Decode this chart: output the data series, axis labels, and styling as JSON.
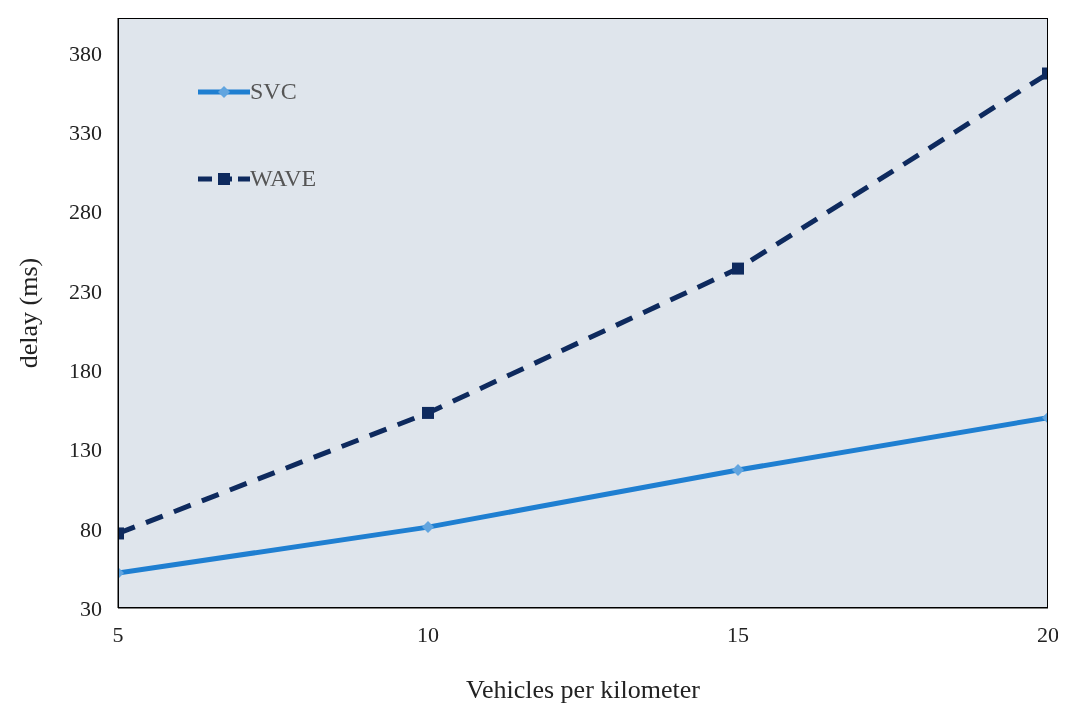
{
  "chart_data": {
    "type": "line",
    "xlabel": "Vehicles per kilometer",
    "ylabel": "delay (ms)",
    "x": [
      5,
      10,
      15,
      20
    ],
    "xlim": [
      5,
      20
    ],
    "xticks": [
      5,
      10,
      15,
      20
    ],
    "ylim": [
      30,
      402
    ],
    "yticks": [
      30,
      80,
      130,
      180,
      230,
      280,
      330,
      380
    ],
    "grid": false,
    "legend": "top left",
    "series": [
      {
        "name": "SVC",
        "color": "#1f7fd1",
        "values": [
          52,
          81,
          117,
          150
        ],
        "marker": "diamond",
        "line_style": "solid"
      },
      {
        "name": "WAVE",
        "color": "#0e2a5e",
        "values": [
          77,
          153,
          244,
          367
        ],
        "marker": "square",
        "line_style": "dashed"
      }
    ]
  }
}
